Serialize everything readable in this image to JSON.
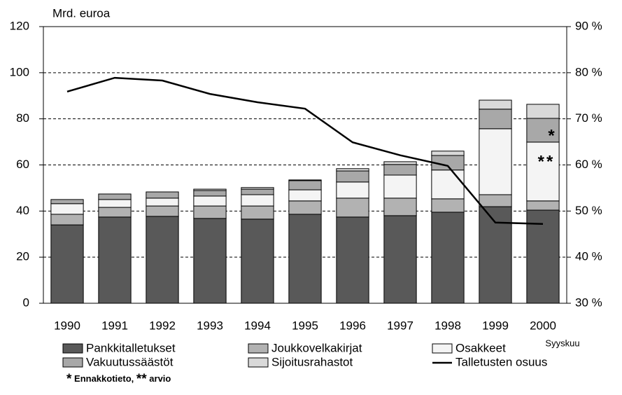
{
  "chart_data": {
    "type": "stacked-bar-line",
    "y_label": "Mrd. euroa",
    "categories": [
      "1990",
      "1991",
      "1992",
      "1993",
      "1994",
      "1995",
      "1996",
      "1997",
      "1998",
      "1999",
      "2000"
    ],
    "category_note": "Syyskuu",
    "series": [
      {
        "name": "Pankkitalletukset",
        "color": "#595959",
        "values": [
          34.0,
          37.4,
          37.7,
          36.8,
          36.5,
          38.6,
          37.4,
          38.0,
          39.5,
          41.9,
          40.4
        ]
      },
      {
        "name": "Joukkovelkakirjat",
        "color": "#b2b2b2",
        "values": [
          4.6,
          4.2,
          4.5,
          5.4,
          5.7,
          5.8,
          8.2,
          7.6,
          5.8,
          5.2,
          4.0
        ]
      },
      {
        "name": "Osakkeet",
        "color": "#f4f4f4",
        "values": [
          4.6,
          3.4,
          3.4,
          4.3,
          4.9,
          4.8,
          7.0,
          10.0,
          12.5,
          28.6,
          25.5
        ]
      },
      {
        "name": "Vakuutussäästöt",
        "color": "#a8a8a8",
        "values": [
          1.8,
          2.4,
          2.7,
          2.4,
          2.4,
          4.0,
          4.8,
          4.6,
          6.3,
          8.5,
          10.3
        ]
      },
      {
        "name": "Sijoitusrahastot",
        "color": "#d9d9d9",
        "values": [
          0,
          0,
          0,
          0.6,
          0.7,
          0.3,
          1.0,
          1.2,
          1.9,
          3.9,
          6.1
        ]
      },
      {
        "name": "Talletusten osuus",
        "color": "#000000",
        "axis": "y2",
        "line": true,
        "values": [
          75.9,
          78.9,
          78.3,
          75.4,
          73.6,
          72.2,
          64.9,
          62.1,
          59.8,
          47.5,
          47.2
        ]
      }
    ],
    "ylim": [
      0,
      120
    ],
    "yticks": [
      0,
      20,
      40,
      60,
      80,
      100,
      120
    ],
    "y2lim": [
      30,
      90
    ],
    "y2ticks": [
      {
        "value": 30,
        "label": "30 %"
      },
      {
        "value": 40,
        "label": "40 %"
      },
      {
        "value": 50,
        "label": "50 %"
      },
      {
        "value": 60,
        "label": "60 %"
      },
      {
        "value": 70,
        "label": "70 %"
      },
      {
        "value": 80,
        "label": "80 %"
      },
      {
        "value": 90,
        "label": "90 %"
      }
    ],
    "grid": true,
    "annotations": [
      "*",
      "**"
    ],
    "footnote": [
      "*",
      " Ennakkotieto, ",
      "**",
      " arvio"
    ]
  }
}
